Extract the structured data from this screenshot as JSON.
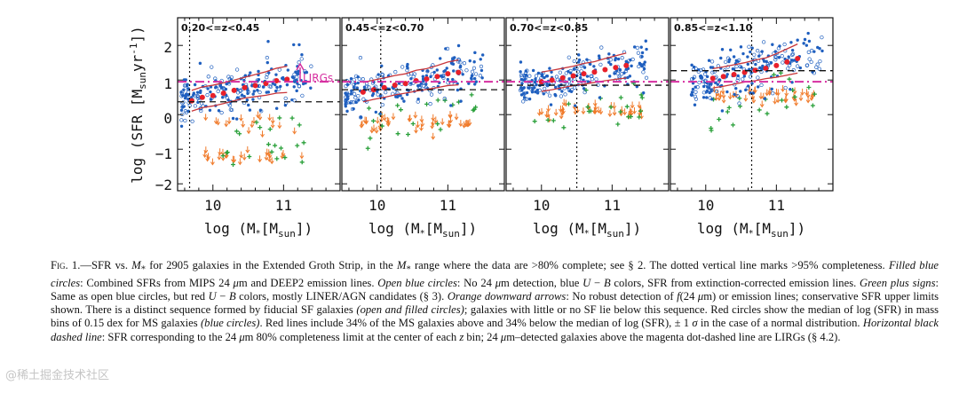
{
  "figure": {
    "ylabel": "log (SFR [M",
    "ylabel_sub": "sun",
    "ylabel_unit": "yr",
    "ylabel_sup": "-1",
    "ylabel_close": "])",
    "xlabel": "log (M",
    "xlabel_star": "*",
    "xlabel_mid": "[M",
    "xlabel_sub": "sun",
    "xlabel_close": "])",
    "lirg_label": "LIRGs",
    "colors": {
      "ms_blue": "#1f5fbf",
      "red_median": "#e8202a",
      "red_line": "#c8363a",
      "green": "#2aa03a",
      "orange": "#f07a2a",
      "magenta": "#d62fa0"
    }
  },
  "chart_data": [
    {
      "type": "scatter",
      "panel_label": "0.20<=z<0.45",
      "xlim": [
        9.5,
        11.8
      ],
      "ylim": [
        -2.2,
        2.8
      ],
      "xticks": [
        10,
        11
      ],
      "yticks": [
        -2,
        -1,
        0,
        1,
        2
      ],
      "completeness_mass": 9.67,
      "lirg_level": 0.95,
      "sfr_limit": 0.37,
      "median": {
        "x": [
          9.7,
          9.85,
          10.0,
          10.15,
          10.3,
          10.45,
          10.6,
          10.75,
          10.9,
          11.05
        ],
        "y": [
          0.4,
          0.5,
          0.55,
          0.62,
          0.7,
          0.78,
          0.84,
          0.9,
          0.98,
          1.02
        ],
        "sigma": [
          0.3,
          0.3,
          0.3,
          0.3,
          0.3,
          0.3,
          0.32,
          0.34,
          0.36,
          0.38
        ]
      }
    },
    {
      "type": "scatter",
      "panel_label": "0.45<=z<0.70",
      "xlim": [
        9.5,
        11.8
      ],
      "ylim": [
        -2.2,
        2.8
      ],
      "xticks": [
        10,
        11
      ],
      "yticks": [
        -2,
        -1,
        0,
        1,
        2
      ],
      "completeness_mass": 10.05,
      "lirg_level": 0.95,
      "sfr_limit": 0.72,
      "median": {
        "x": [
          9.8,
          9.95,
          10.1,
          10.25,
          10.4,
          10.55,
          10.7,
          10.85,
          11.0,
          11.15
        ],
        "y": [
          0.65,
          0.72,
          0.78,
          0.85,
          0.9,
          0.98,
          1.03,
          1.1,
          1.18,
          1.22
        ],
        "sigma": [
          0.28,
          0.28,
          0.28,
          0.28,
          0.28,
          0.3,
          0.3,
          0.32,
          0.34,
          0.36
        ]
      }
    },
    {
      "type": "scatter",
      "panel_label": "0.70<=z<0.85",
      "xlim": [
        9.5,
        11.8
      ],
      "ylim": [
        -2.2,
        2.8
      ],
      "xticks": [
        10,
        11
      ],
      "yticks": [
        -2,
        -1,
        0,
        1,
        2
      ],
      "completeness_mass": 10.5,
      "lirg_level": 0.95,
      "sfr_limit": 0.85,
      "median": {
        "x": [
          10.0,
          10.15,
          10.3,
          10.45,
          10.6,
          10.75,
          10.9,
          11.05,
          11.2
        ],
        "y": [
          0.95,
          1.0,
          1.06,
          1.12,
          1.18,
          1.23,
          1.3,
          1.36,
          1.42
        ],
        "sigma": [
          0.28,
          0.28,
          0.28,
          0.28,
          0.3,
          0.3,
          0.32,
          0.34,
          0.36
        ]
      }
    },
    {
      "type": "scatter",
      "panel_label": "0.85<=z<1.10",
      "xlim": [
        9.5,
        11.8
      ],
      "ylim": [
        -2.2,
        2.8
      ],
      "xticks": [
        10,
        11
      ],
      "yticks": [
        -2,
        -1,
        0,
        1,
        2
      ],
      "completeness_mass": 10.65,
      "lirg_level": 0.95,
      "sfr_limit": 1.27,
      "median": {
        "x": [
          10.1,
          10.25,
          10.4,
          10.55,
          10.7,
          10.85,
          11.0,
          11.15,
          11.3
        ],
        "y": [
          1.05,
          1.1,
          1.16,
          1.22,
          1.28,
          1.34,
          1.42,
          1.52,
          1.62
        ],
        "sigma": [
          0.28,
          0.28,
          0.28,
          0.28,
          0.3,
          0.3,
          0.34,
          0.38,
          0.42
        ]
      }
    }
  ],
  "caption": {
    "fig_label": "Fig. 1.",
    "dash": "—SFR vs. ",
    "p01": "M",
    "p02": "*",
    "p03": " for 2905 galaxies in the Extended Groth Strip, in the ",
    "p04": "M",
    "p05": "*",
    "p06": " range where the data are >80% complete; see § 2. The dotted vertical line marks >95% completeness. ",
    "p07": "Filled blue circles",
    "p08": ": Combined SFRs from MIPS 24 ",
    "p09": "μ",
    "p10": "m and DEEP2 emission lines. ",
    "p11": "Open blue circles",
    "p12": ": No 24 ",
    "p13": "μ",
    "p14": "m detection, blue ",
    "p15": "U",
    "p16": " − ",
    "p17": "B",
    "p18": " colors, SFR from extinction-corrected emission lines. ",
    "p19": "Green plus signs",
    "p20": ": Same as open blue circles, but red ",
    "p21": "U",
    "p22": " − ",
    "p23": "B",
    "p24": " colors, mostly LINER/AGN candidates (§ 3). ",
    "p25": "Orange downward arrows",
    "p26": ": No robust detection of ",
    "p27": "f",
    "p28": "(24 ",
    "p29": "μ",
    "p30": "m) or emission lines; conservative SFR upper limits shown. There is a distinct sequence formed by fiducial SF galaxies ",
    "p31": "(open and filled circles)",
    "p32": "; galaxies with little or no SF lie below this sequence. Red circles show the median of log (SFR) in mass bins of 0.15 dex for MS galaxies ",
    "p33": "(blue circles)",
    "p34": ". Red lines include 34% of the MS galaxies above and 34% below the median of log (SFR), ± 1 ",
    "p35": "σ",
    "p36": " in the case of a normal distribution. ",
    "p37": "Horizontal black dashed line",
    "p38": ": SFR corresponding to the 24 ",
    "p39": "μ",
    "p40": "m 80% completeness limit at the center of each ",
    "p41": "z",
    "p42": " bin; 24 ",
    "p43": "μ",
    "p44": "m–detected galaxies above the magenta dot-dashed line are LIRGs (§ 4.2)."
  },
  "watermark": "@稀土掘金技术社区"
}
